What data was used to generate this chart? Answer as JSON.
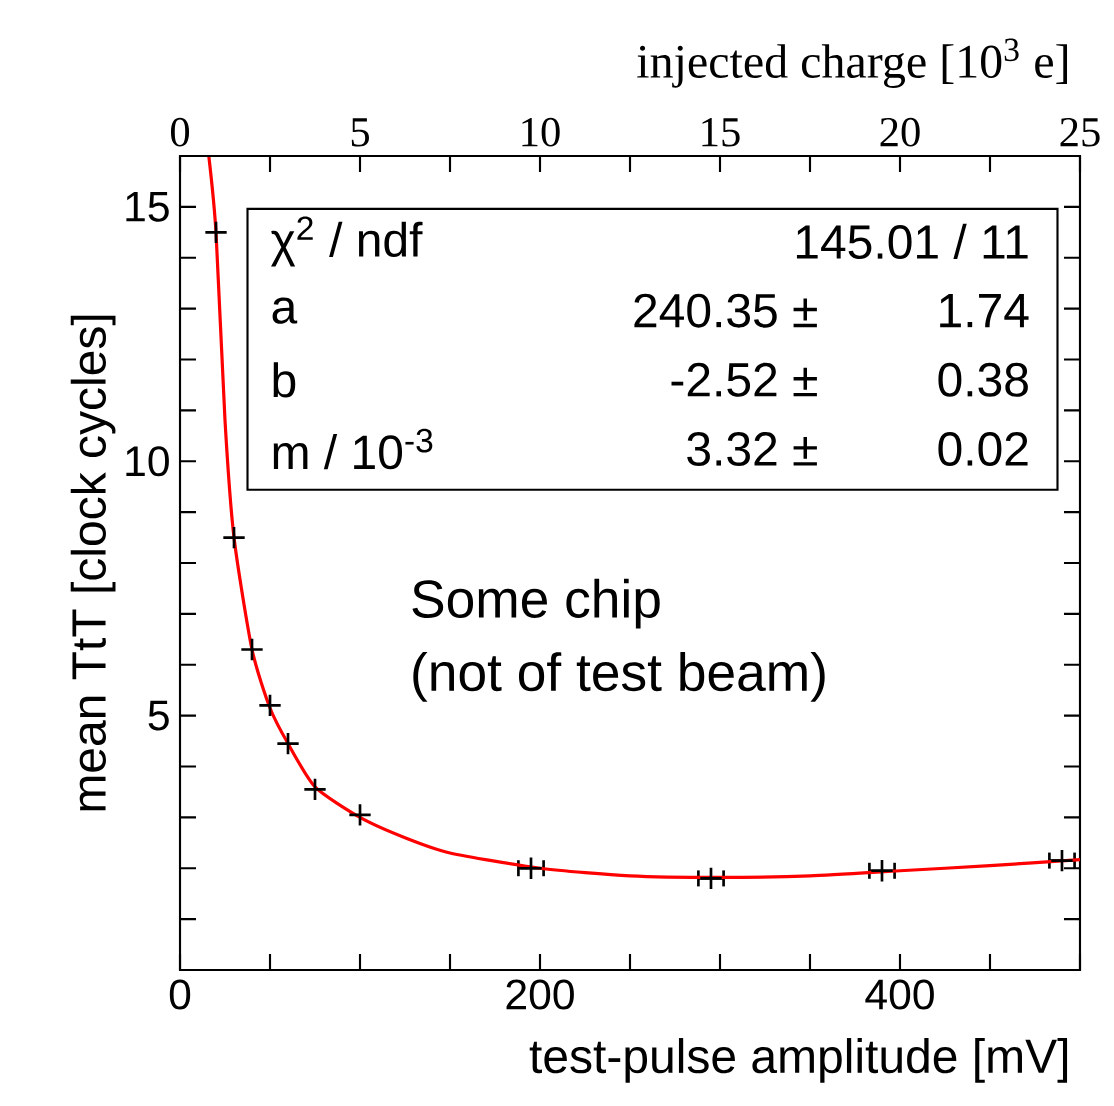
{
  "chart_data": {
    "type": "scatter",
    "xlabel": "test-pulse amplitude [mV]",
    "ylabel": "mean TtT [clock cycles]",
    "x2label": "injected charge [10$^{3}$ e]",
    "xlim": [
      0,
      500
    ],
    "ylim": [
      0,
      16
    ],
    "x2lim": [
      0,
      25
    ],
    "xticks": [
      0,
      {
        "value": 50,
        "label": null
      },
      {
        "value": 100,
        "label": null
      },
      {
        "value": 150,
        "label": null
      },
      200,
      {
        "value": 250,
        "label": null
      },
      {
        "value": 300,
        "label": null
      },
      {
        "value": 350,
        "label": null
      },
      400,
      {
        "value": 450,
        "label": null
      },
      {
        "value": 500,
        "label": null
      }
    ],
    "x2ticks": [
      0,
      {
        "value": 2.5,
        "label": null
      },
      5,
      {
        "value": 7.5,
        "label": null
      },
      10,
      {
        "value": 12.5,
        "label": null
      },
      15,
      {
        "value": 17.5,
        "label": null
      },
      20,
      {
        "value": 22.5,
        "label": null
      },
      25
    ],
    "yticks": [
      {
        "value": 1,
        "label": null
      },
      {
        "value": 2,
        "label": null
      },
      {
        "value": 3,
        "label": null
      },
      {
        "value": 4,
        "label": null
      },
      5,
      {
        "value": 6,
        "label": null
      },
      {
        "value": 7,
        "label": null
      },
      {
        "value": 8,
        "label": null
      },
      {
        "value": 9,
        "label": null
      },
      10,
      {
        "value": 11,
        "label": null
      },
      {
        "value": 12,
        "label": null
      },
      {
        "value": 13,
        "label": null
      },
      {
        "value": 14,
        "label": null
      },
      15
    ],
    "series": [
      {
        "color": "#000000",
        "marker": "cross",
        "x": [
          20,
          30,
          40,
          50,
          60,
          75,
          100,
          195,
          295,
          390,
          490
        ],
        "values": [
          14.5,
          8.5,
          6.3,
          5.2,
          4.45,
          3.55,
          3.05,
          2.0,
          1.8,
          1.95,
          2.15
        ],
        "xerrors": [
          null,
          null,
          null,
          null,
          null,
          null,
          null,
          7,
          7,
          7,
          7
        ]
      },
      {
        "type": "line",
        "color": "#ff0000",
        "line_style": "solid",
        "x": [
          16,
          20,
          25,
          30,
          40,
          50,
          60,
          75,
          100,
          125,
          150,
          200,
          250,
          300,
          350,
          400,
          450,
          500
        ],
        "values": [
          16,
          14.5,
          10.8,
          8.5,
          6.3,
          5.15,
          4.45,
          3.6,
          3.0,
          2.6,
          2.3,
          2.0,
          1.85,
          1.82,
          1.85,
          1.95,
          2.05,
          2.17
        ]
      }
    ],
    "annotations": [
      "χ$^{2}$ / ndf",
      "145.01 / 11",
      "a",
      "240.35 ±",
      "1.74",
      "b",
      "-2.52 ±",
      "0.38",
      "m / 10$^{-3}$",
      "3.32 ±",
      "0.02",
      "Some chip",
      "(not of test beam)"
    ],
    "grid": false
  }
}
